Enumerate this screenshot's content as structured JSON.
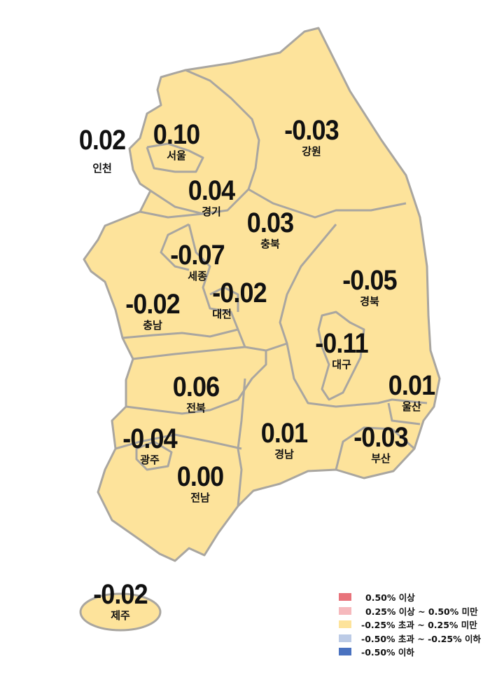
{
  "regions": [
    {
      "name": "인천",
      "value": "0.02"
    },
    {
      "name": "서울",
      "value": "0.10"
    },
    {
      "name": "경기",
      "value": "0.04"
    },
    {
      "name": "강원",
      "value": "-0.03"
    },
    {
      "name": "충북",
      "value": "0.03"
    },
    {
      "name": "세종",
      "value": "-0.07"
    },
    {
      "name": "대전",
      "value": "-0.02"
    },
    {
      "name": "충남",
      "value": "-0.02"
    },
    {
      "name": "경북",
      "value": "-0.05"
    },
    {
      "name": "대구",
      "value": "-0.11"
    },
    {
      "name": "울산",
      "value": "0.01"
    },
    {
      "name": "전북",
      "value": "0.06"
    },
    {
      "name": "광주",
      "value": "-0.04"
    },
    {
      "name": "전남",
      "value": "0.00"
    },
    {
      "name": "경남",
      "value": "0.01"
    },
    {
      "name": "부산",
      "value": "-0.03"
    },
    {
      "name": "제주",
      "value": "-0.02"
    }
  ],
  "legend": [
    {
      "label": "0.50% 이상",
      "color": "#e8737b"
    },
    {
      "label": "0.25% 이상 ~ 0.50% 미만",
      "color": "#f6b9bd"
    },
    {
      "label": "-0.25% 초과 ~ 0.25% 미만",
      "color": "#fde39b"
    },
    {
      "label": "-0.50% 초과 ~ -0.25% 이하",
      "color": "#bccbe6"
    },
    {
      "label": "-0.50% 이하",
      "color": "#4a72c0"
    }
  ],
  "colors": {
    "land": "#fde39b",
    "border": "#a9a6a0"
  }
}
